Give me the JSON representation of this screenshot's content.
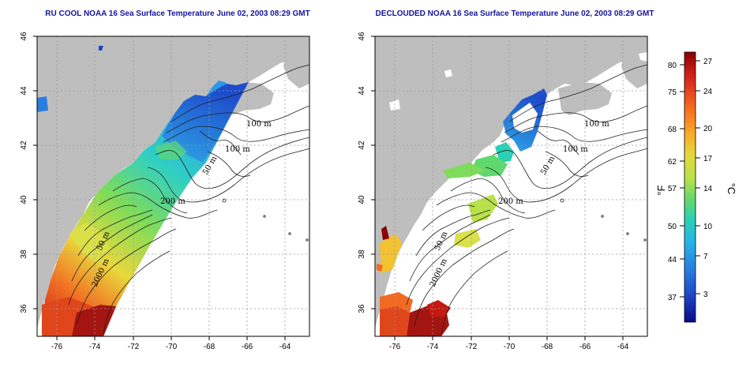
{
  "panels": [
    {
      "title": "RU COOL NOAA 16 Sea Surface Temperature June 02, 2003 08:29 GMT"
    },
    {
      "title": "DECLOUDED NOAA 16 Sea Surface Temperature June 02, 2003 08:29 GMT"
    }
  ],
  "axes": {
    "x_ticks": [
      "-76",
      "-74",
      "-72",
      "-70",
      "-68",
      "-66",
      "-64"
    ],
    "y_ticks": [
      "46",
      "44",
      "42",
      "40",
      "38",
      "36"
    ]
  },
  "contours": {
    "label_100_a": "100 m",
    "label_100_b": "100 m",
    "label_50_ne": "50 m",
    "label_200": "200 m",
    "label_50_sw": "50 m",
    "label_2000": "2000 m"
  },
  "colorbar": {
    "f_unit": "°F",
    "c_unit": "°C",
    "f_ticks": [
      "80",
      "75",
      "68",
      "62",
      "57",
      "50",
      "44",
      "37"
    ],
    "c_ticks": [
      "27",
      "24",
      "20",
      "17",
      "14",
      "10",
      "7",
      "3"
    ],
    "colors": [
      "#8b0000",
      "#d4221a",
      "#f4671f",
      "#f9a825",
      "#e5d83b",
      "#b8e14a",
      "#5fd86e",
      "#2ad1b6",
      "#26b6e6",
      "#2a80e0",
      "#1e46c8",
      "#0a0a8a"
    ]
  },
  "colors": {
    "land": "#bebebe",
    "title": "#1414a0",
    "grid": "#9a9a9a"
  }
}
